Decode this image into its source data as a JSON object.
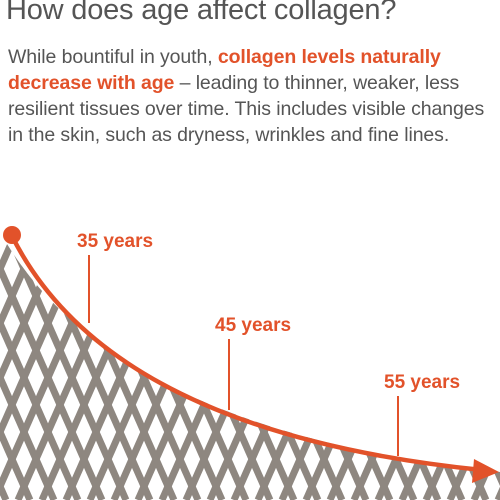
{
  "title": "How does age affect collagen?",
  "paragraph": {
    "intro": "While bountiful in youth, ",
    "highlight": "collagen levels naturally decrease with age",
    "rest": " – leading to thinner, weaker, less resilient tissues over time. This includes visible changes in the skin, such as dryness, wrinkles and fine lines."
  },
  "labels": {
    "age_35": "35 years",
    "age_45": "45 years",
    "age_55": "55 years"
  },
  "colors": {
    "accent": "#e2522a",
    "fiber": "#8e8780",
    "text": "#555555"
  }
}
